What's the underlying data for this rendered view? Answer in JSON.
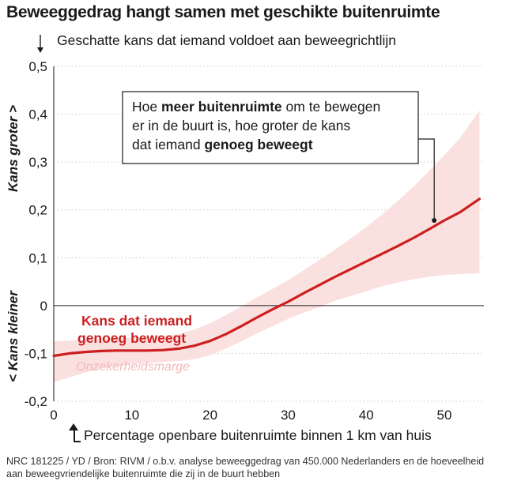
{
  "title": "Beweeggedrag hangt samen met geschikte buitenruimte",
  "source": "NRC 181225 / YD / Bron: RIVM / o.b.v. analyse beweeggedrag van 450.000 Nederlanders en de hoeveelheid aan beweegvriendelijke buitenruimte die zij in de buurt hebben",
  "colors": {
    "line": "#cc1f1f",
    "band": "#fbe0e0",
    "label_band": "#f2b9b9",
    "grid": "#cccccc"
  },
  "chart_data": {
    "type": "line",
    "title": "Beweeggedrag hangt samen met geschikte buitenruimte",
    "xlabel": "Percentage openbare buitenruimte binnen 1 km van huis",
    "ylabel": "Geschatte kans dat iemand voldoet aan beweegrichtlijn",
    "side_labels": {
      "top": "Kans groter >",
      "bottom": "< Kans kleiner"
    },
    "xlim": [
      0,
      55
    ],
    "ylim": [
      -0.2,
      0.5
    ],
    "x_ticks": [
      0,
      10,
      20,
      30,
      40,
      50
    ],
    "x_tick_labels": [
      "0",
      "10",
      "20",
      "30",
      "40",
      "50"
    ],
    "y_ticks": [
      -0.2,
      -0.1,
      0,
      0.1,
      0.2,
      0.3,
      0.4,
      0.5
    ],
    "y_tick_labels": [
      "-0,2",
      "-0,1",
      "0",
      "0,1",
      "0,2",
      "0,3",
      "0,4",
      "0,5"
    ],
    "grid": true,
    "series": [
      {
        "name": "Kans dat iemand genoeg beweegt",
        "x": [
          0,
          2,
          4,
          6,
          8,
          10,
          12,
          14,
          16,
          18,
          20,
          22,
          24,
          26,
          28,
          30,
          32,
          34,
          36,
          38,
          40,
          42,
          44,
          46,
          48,
          50,
          52,
          54.5
        ],
        "y": [
          -0.105,
          -0.1,
          -0.097,
          -0.095,
          -0.094,
          -0.094,
          -0.094,
          -0.093,
          -0.09,
          -0.084,
          -0.074,
          -0.06,
          -0.043,
          -0.025,
          -0.008,
          0.008,
          0.026,
          0.043,
          0.06,
          0.076,
          0.092,
          0.108,
          0.124,
          0.141,
          0.159,
          0.178,
          0.195,
          0.223
        ],
        "band_upper": [
          -0.075,
          -0.073,
          -0.071,
          -0.069,
          -0.068,
          -0.067,
          -0.066,
          -0.064,
          -0.059,
          -0.05,
          -0.037,
          -0.02,
          -0.002,
          0.017,
          0.035,
          0.053,
          0.074,
          0.095,
          0.117,
          0.14,
          0.164,
          0.19,
          0.218,
          0.248,
          0.28,
          0.315,
          0.35,
          0.408
        ],
        "band_lower": [
          -0.16,
          -0.15,
          -0.14,
          -0.132,
          -0.126,
          -0.122,
          -0.12,
          -0.118,
          -0.116,
          -0.112,
          -0.104,
          -0.09,
          -0.075,
          -0.058,
          -0.043,
          -0.028,
          -0.015,
          -0.003,
          0.01,
          0.02,
          0.03,
          0.04,
          0.048,
          0.055,
          0.06,
          0.064,
          0.066,
          0.068
        ]
      }
    ],
    "labels": {
      "series": [
        "Kans dat iemand",
        "genoeg beweegt"
      ],
      "band": "Onzekerheidsmarge"
    },
    "annotation": {
      "x": 48.7,
      "y": 0.178,
      "lines": [
        [
          {
            "text": "Hoe ",
            "bold": false
          },
          {
            "text": "meer buitenruimte",
            "bold": true
          },
          {
            "text": " om te bewegen",
            "bold": false
          }
        ],
        [
          {
            "text": "er in de buurt is, hoe groter de kans",
            "bold": false
          }
        ],
        [
          {
            "text": "dat iemand ",
            "bold": false
          },
          {
            "text": "genoeg beweegt",
            "bold": true
          }
        ]
      ]
    }
  }
}
